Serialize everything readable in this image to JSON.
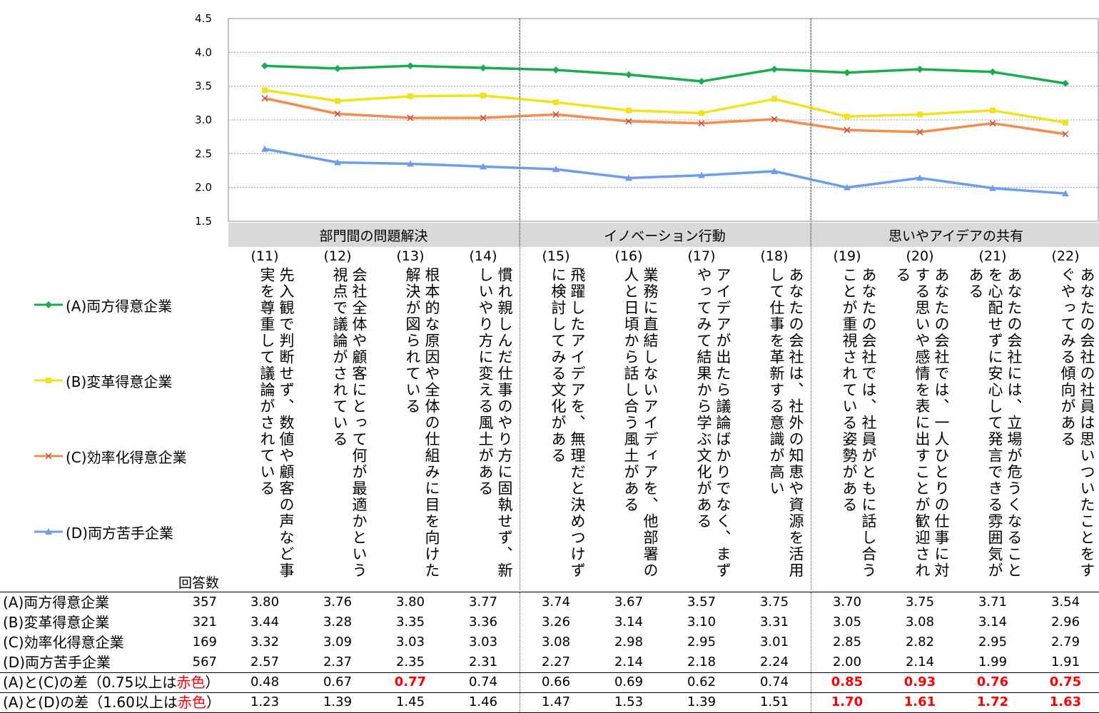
{
  "chart_data": {
    "type": "line",
    "ylim": [
      1.5,
      4.5
    ],
    "yticks": [
      "1.5",
      "2.0",
      "2.5",
      "3.0",
      "3.5",
      "4.0",
      "4.5"
    ],
    "grid": true,
    "legend_position": "left",
    "categories": [
      "(11)",
      "(12)",
      "(13)",
      "(14)",
      "(15)",
      "(16)",
      "(17)",
      "(18)",
      "(19)",
      "(20)",
      "(21)",
      "(22)"
    ],
    "groups": [
      {
        "label": "部門間の問題解決",
        "span": 4
      },
      {
        "label": "イノベーション行動",
        "span": 4
      },
      {
        "label": "思いやアイデアの共有",
        "span": 4
      }
    ],
    "series": [
      {
        "name": "(A)両方得意企業",
        "color": "#1aad4f",
        "marker": "diamond",
        "values": [
          3.8,
          3.76,
          3.8,
          3.77,
          3.74,
          3.67,
          3.57,
          3.75,
          3.7,
          3.75,
          3.71,
          3.54
        ]
      },
      {
        "name": "(B)変革得意企業",
        "color": "#f2e21a",
        "marker": "square",
        "values": [
          3.44,
          3.28,
          3.35,
          3.36,
          3.26,
          3.14,
          3.1,
          3.31,
          3.05,
          3.08,
          3.14,
          2.96
        ]
      },
      {
        "name": "(C)効率化得意企業",
        "color": "#f28d4b",
        "marker": "x",
        "values": [
          3.32,
          3.09,
          3.03,
          3.03,
          3.08,
          2.98,
          2.95,
          3.01,
          2.85,
          2.82,
          2.95,
          2.79
        ]
      },
      {
        "name": "(D)両方苦手企業",
        "color": "#6d9eeb",
        "marker": "triangle",
        "values": [
          2.57,
          2.37,
          2.35,
          2.31,
          2.27,
          2.14,
          2.18,
          2.24,
          2.0,
          2.14,
          1.99,
          1.91
        ]
      }
    ]
  },
  "questions": [
    "先入観で判断せず、数値や顧客の声など事実を尊重して議論がされている",
    "会社全体や顧客にとって何が最適かという視点で議論がされている",
    "根本的な原因や全体の仕組みに目を向けた解決が図られている",
    "慣れ親しんだ仕事のやり方に固執せず、新しいやり方に変える風土がある",
    "飛躍したアイデアを、無理だと決めつけずに検討してみる文化がある",
    "業務に直結しないアイディアを、他部署の人と日頃から話し合う風土がある",
    "アイデアが出たら議論ばかりでなく、まずやってみて結果から学ぶ文化がある",
    "あなたの会社は、社外の知恵や資源を活用して仕事を革新する意識が高い",
    "あなたの会社では、社員がともに話し合うことが重視されている姿勢がある",
    "あなたの会社では、一人ひとりの仕事に対する思いや感情を表に出すことが歓迎される",
    "あなたの会社には、立場が危うくなることを心配せずに安心して発言できる雰囲気がある",
    "あなたの会社の社員は思いついたことをすぐやってみる傾向がある"
  ],
  "table": {
    "count_header": "回答数",
    "rows": [
      {
        "label": "(A)両方得意企業",
        "count": "357",
        "values": [
          "3.80",
          "3.76",
          "3.80",
          "3.77",
          "3.74",
          "3.67",
          "3.57",
          "3.75",
          "3.70",
          "3.75",
          "3.71",
          "3.54"
        ]
      },
      {
        "label": "(B)変革得意企業",
        "count": "321",
        "values": [
          "3.44",
          "3.28",
          "3.35",
          "3.36",
          "3.26",
          "3.14",
          "3.10",
          "3.31",
          "3.05",
          "3.08",
          "3.14",
          "2.96"
        ]
      },
      {
        "label": "(C)効率化得意企業",
        "count": "169",
        "values": [
          "3.32",
          "3.09",
          "3.03",
          "3.03",
          "3.08",
          "2.98",
          "2.95",
          "3.01",
          "2.85",
          "2.82",
          "2.95",
          "2.79"
        ]
      },
      {
        "label": "(D)両方苦手企業",
        "count": "567",
        "values": [
          "2.57",
          "2.37",
          "2.35",
          "2.31",
          "2.27",
          "2.14",
          "2.18",
          "2.24",
          "2.00",
          "2.14",
          "1.99",
          "1.91"
        ]
      }
    ],
    "diff_rows": [
      {
        "label_prefix": "(A)と(C)の差（0.75以上は",
        "label_red": "赤色",
        "label_suffix": "）",
        "values": [
          "0.48",
          "0.67",
          "0.77",
          "0.74",
          "0.66",
          "0.69",
          "0.62",
          "0.74",
          "0.85",
          "0.93",
          "0.76",
          "0.75"
        ],
        "red": [
          false,
          false,
          true,
          false,
          false,
          false,
          false,
          false,
          true,
          true,
          true,
          true
        ]
      },
      {
        "label_prefix": "(A)と(D)の差（1.60以上は",
        "label_red": "赤色",
        "label_suffix": "）",
        "values": [
          "1.23",
          "1.39",
          "1.45",
          "1.46",
          "1.47",
          "1.53",
          "1.39",
          "1.51",
          "1.70",
          "1.61",
          "1.72",
          "1.63"
        ],
        "red": [
          false,
          false,
          false,
          false,
          false,
          false,
          false,
          false,
          true,
          true,
          true,
          true
        ]
      }
    ]
  }
}
